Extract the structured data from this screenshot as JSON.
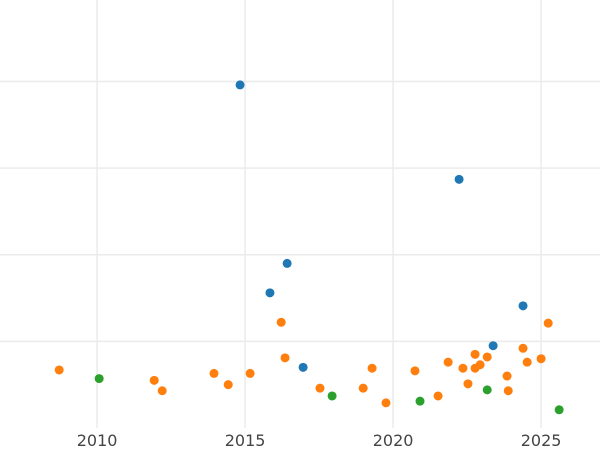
{
  "chart_data": {
    "type": "scatter",
    "title": "",
    "xlabel": "",
    "ylabel": "",
    "xlim": [
      2006.72,
      2026.99
    ],
    "ylim": [
      0,
      4.94
    ],
    "x_ticks": [
      2010,
      2015,
      2020,
      2025
    ],
    "x_tick_labels": [
      "2010",
      "2015",
      "2020",
      "2025"
    ],
    "y_gridlines": [
      1,
      2,
      3,
      4
    ],
    "y_tick_labels_visible": false,
    "grid": true,
    "legend": "none",
    "series": [
      {
        "color": "#1f77b4",
        "points": [
          [
            2014.83,
            3.96
          ],
          [
            2022.23,
            2.87
          ],
          [
            2016.42,
            1.9
          ],
          [
            2015.84,
            1.56
          ],
          [
            2016.96,
            0.7
          ],
          [
            2023.38,
            0.95
          ],
          [
            2024.39,
            1.41
          ]
        ]
      },
      {
        "color": "#2ca02c",
        "points": [
          [
            2010.07,
            0.57
          ],
          [
            2017.94,
            0.37
          ],
          [
            2020.91,
            0.31
          ],
          [
            2023.18,
            0.44
          ],
          [
            2025.61,
            0.21
          ]
        ]
      },
      {
        "color": "#ff7f0e",
        "points": [
          [
            2008.72,
            0.67
          ],
          [
            2011.93,
            0.55
          ],
          [
            2012.2,
            0.43
          ],
          [
            2013.95,
            0.63
          ],
          [
            2014.43,
            0.5
          ],
          [
            2015.17,
            0.63
          ],
          [
            2016.22,
            1.22
          ],
          [
            2016.35,
            0.81
          ],
          [
            2017.53,
            0.46
          ],
          [
            2018.99,
            0.46
          ],
          [
            2019.29,
            0.69
          ],
          [
            2019.76,
            0.29
          ],
          [
            2020.74,
            0.66
          ],
          [
            2021.52,
            0.37
          ],
          [
            2021.86,
            0.76
          ],
          [
            2022.36,
            0.69
          ],
          [
            2022.53,
            0.51
          ],
          [
            2022.77,
            0.85
          ],
          [
            2022.77,
            0.69
          ],
          [
            2022.94,
            0.73
          ],
          [
            2023.18,
            0.82
          ],
          [
            2023.85,
            0.6
          ],
          [
            2023.89,
            0.43
          ],
          [
            2024.39,
            0.92
          ],
          [
            2024.53,
            0.76
          ],
          [
            2025.0,
            0.8
          ],
          [
            2025.24,
            1.21
          ]
        ]
      }
    ]
  }
}
